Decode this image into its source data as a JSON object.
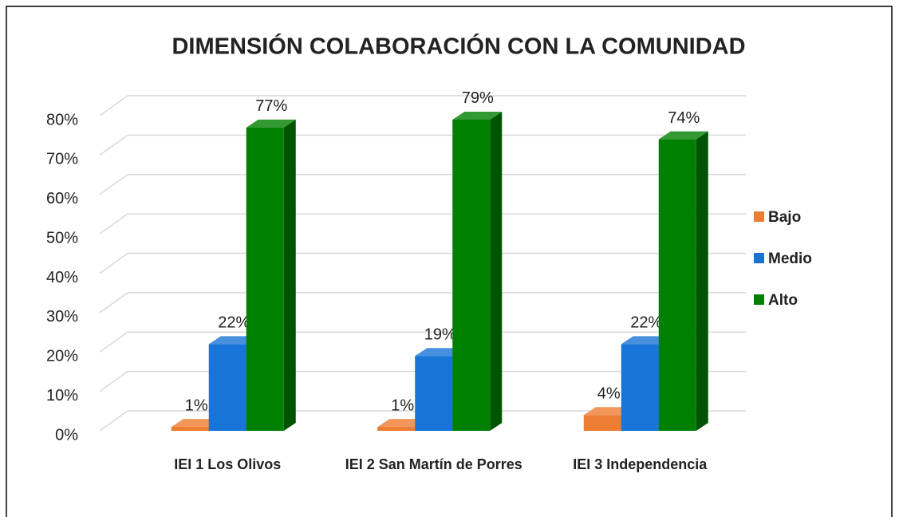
{
  "chart_data": {
    "type": "bar3d",
    "title": "DIMENSIÓN COLABORACIÓN CON LA COMUNIDAD",
    "categories": [
      "IEI 1 Los Olivos",
      "IEI 2 San Martín de Porres",
      "IEI 3 Independencia"
    ],
    "series": [
      {
        "name": "Bajo",
        "color": "#ed7d31",
        "values": [
          1,
          1,
          4
        ],
        "value_labels": [
          "1%",
          "1%",
          "4%"
        ]
      },
      {
        "name": "Medio",
        "color": "#1874d6",
        "values": [
          22,
          19,
          22
        ],
        "value_labels": [
          "22%",
          "19%",
          "22%"
        ]
      },
      {
        "name": "Alto",
        "color": "#008000",
        "values": [
          77,
          79,
          74
        ],
        "value_labels": [
          "77%",
          "79%",
          "74%"
        ]
      }
    ],
    "ylim": [
      0,
      80
    ],
    "yticks": [
      {
        "value": 0,
        "label": "0%"
      },
      {
        "value": 10,
        "label": "10%"
      },
      {
        "value": 20,
        "label": "20%"
      },
      {
        "value": 30,
        "label": "30%"
      },
      {
        "value": 40,
        "label": "40%"
      },
      {
        "value": 50,
        "label": "50%"
      },
      {
        "value": 60,
        "label": "60%"
      },
      {
        "value": 70,
        "label": "70%"
      },
      {
        "value": 80,
        "label": "80%"
      }
    ],
    "grid": true,
    "legend": "right"
  }
}
